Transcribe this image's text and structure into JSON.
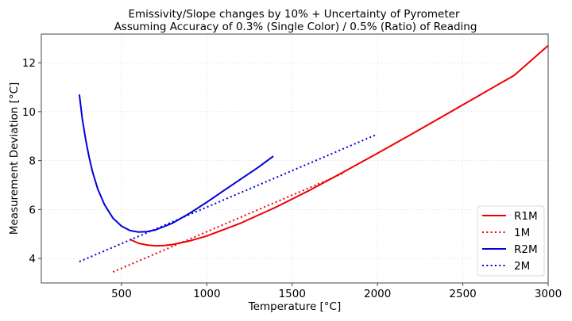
{
  "chart_data": {
    "type": "line",
    "title": "Emissivity/Slope changes by 10% + Uncertainty of Pyrometer",
    "subtitle": "Assuming Accuracy of 0.3% (Single Color) / 0.5% (Ratio) of Reading",
    "xlabel": "Temperature [°C]",
    "ylabel": "Measurement Deviation [°C]",
    "xlim": [
      30,
      3000
    ],
    "ylim": [
      3.0,
      13.17
    ],
    "xticks": [
      500,
      1000,
      1500,
      2000,
      2500,
      3000
    ],
    "yticks": [
      4,
      6,
      8,
      10,
      12
    ],
    "grid": true,
    "legend_position": "bottom-right",
    "series": [
      {
        "name": "R1M",
        "color": "#ee0000",
        "style": "solid",
        "x": [
          550,
          600,
          650,
          700,
          750,
          800,
          900,
          1000,
          1200,
          1400,
          1600,
          1800,
          2000,
          2200,
          2400,
          2600,
          2800,
          3000
        ],
        "y": [
          4.78,
          4.62,
          4.55,
          4.52,
          4.53,
          4.57,
          4.72,
          4.92,
          5.45,
          6.08,
          6.78,
          7.53,
          8.3,
          9.08,
          9.88,
          10.68,
          11.48,
          12.7
        ]
      },
      {
        "name": "1M",
        "color": "#ee0000",
        "style": "dotted",
        "x": [
          450,
          1795
        ],
        "y": [
          3.45,
          7.47
        ]
      },
      {
        "name": "R2M",
        "color": "#0000dd",
        "style": "solid",
        "x": [
          253,
          270,
          290,
          310,
          330,
          360,
          400,
          450,
          500,
          550,
          600,
          650,
          700,
          800,
          900,
          1000,
          1100,
          1200,
          1300,
          1390
        ],
        "y": [
          10.7,
          9.7,
          8.85,
          8.15,
          7.55,
          6.85,
          6.2,
          5.65,
          5.32,
          5.14,
          5.08,
          5.1,
          5.17,
          5.45,
          5.85,
          6.3,
          6.78,
          7.25,
          7.72,
          8.18
        ]
      },
      {
        "name": "2M",
        "color": "#0000dd",
        "style": "dotted",
        "x": [
          253,
          1990
        ],
        "y": [
          3.87,
          9.05
        ]
      }
    ]
  }
}
